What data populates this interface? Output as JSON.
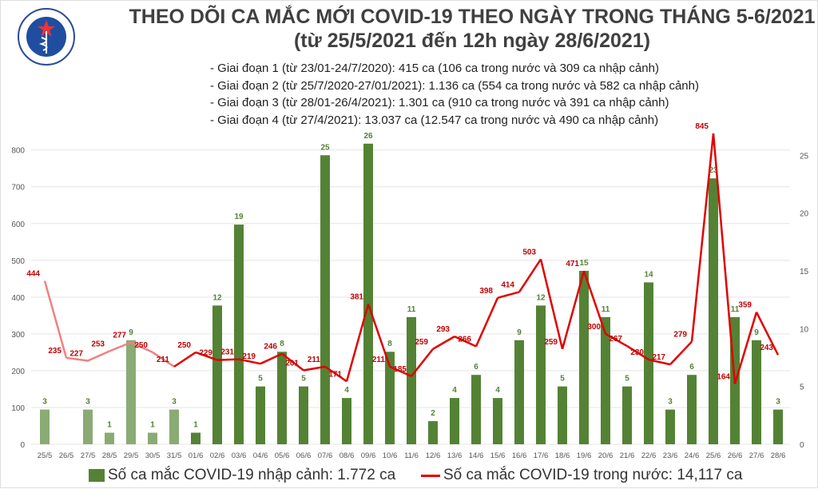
{
  "logo": {
    "text_top": "BỘ Y TẾ",
    "text_bottom": "MINISTRY OF HEALTH"
  },
  "title": "THEO DÕI CA MẮC MỚI COVID-19 THEO NGÀY TRONG THÁNG 5-6/2021",
  "subtitle": "(từ 25/5/2021 đến 12h ngày 28/6/2021)",
  "notes": [
    "- Giai đoạn 1 (từ 23/01-24/7/2020): 415 ca (106 ca trong nước và 309 ca nhập cảnh)",
    "- Giai đoạn 2 (từ 25/7/2020-27/01/2021): 1.136 ca (554 ca trong nước và 582 ca nhập cảnh)",
    "- Giai đoạn 3 (từ 28/01-26/4/2021): 1.301 ca (910 ca trong nước và 391 ca nhập cảnh)",
    "- Giai đoạn 4 (từ 27/4/2021): 13.037 ca (12.547 ca trong nước và 490 ca nhập cảnh)"
  ],
  "chart_data": {
    "type": "bar+line",
    "categories": [
      "25/5",
      "26/5",
      "27/5",
      "28/5",
      "29/5",
      "30/5",
      "31/5",
      "01/6",
      "02/6",
      "03/6",
      "04/6",
      "05/6",
      "06/6",
      "07/6",
      "08/6",
      "09/6",
      "10/6",
      "11/6",
      "12/6",
      "13/6",
      "14/6",
      "15/6",
      "16/6",
      "17/6",
      "18/6",
      "19/6",
      "20/6",
      "21/6",
      "22/6",
      "23/6",
      "24/6",
      "25/6",
      "26/6",
      "27/6",
      "28/6"
    ],
    "series": [
      {
        "name": "Số ca mắc COVID-19 nhập cảnh: 1.772 ca",
        "type": "bar",
        "axis": "right",
        "values": [
          3,
          0,
          3,
          1,
          9,
          1,
          3,
          1,
          12,
          19,
          5,
          8,
          5,
          25,
          4,
          26,
          8,
          11,
          2,
          4,
          6,
          4,
          9,
          12,
          5,
          15,
          11,
          5,
          14,
          3,
          6,
          23,
          11,
          9,
          3
        ],
        "color": "#548235",
        "early_color": "#8aab74"
      },
      {
        "name": "Số ca mắc COVID-19 trong nước: 14,117 ca",
        "type": "line",
        "axis": "left",
        "values": [
          444,
          235,
          227,
          253,
          277,
          250,
          211,
          250,
          229,
          231,
          219,
          246,
          201,
          211,
          171,
          381,
          211,
          185,
          259,
          293,
          266,
          398,
          414,
          503,
          259,
          471,
          300,
          267,
          230,
          217,
          279,
          845,
          164,
          359,
          243
        ],
        "color": "#e00000",
        "early_color": "#f08080"
      }
    ],
    "left_axis": {
      "ylim": [
        0,
        858
      ],
      "ticks": [
        0,
        100,
        200,
        300,
        400,
        500,
        600,
        700,
        800
      ]
    },
    "right_axis": {
      "ylim": [
        0,
        27.3
      ],
      "ticks": [
        0,
        5,
        10,
        15,
        20,
        25
      ]
    },
    "grid": true,
    "legend": "bottom"
  }
}
